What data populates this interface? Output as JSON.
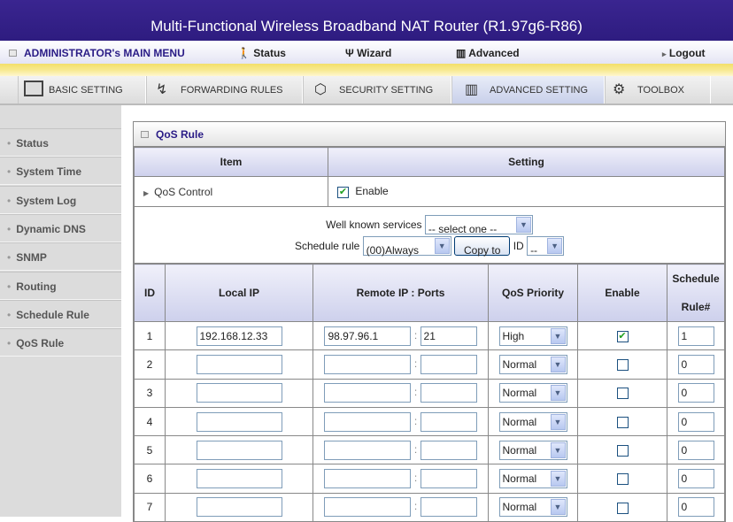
{
  "header": {
    "title": "Multi-Functional Wireless Broadband NAT Router (R1.97g6-R86)"
  },
  "menu": {
    "main": "ADMINISTRATOR's MAIN MENU",
    "status": "Status",
    "wizard": "Wizard",
    "advanced": "Advanced",
    "logout": "Logout"
  },
  "tabs": [
    {
      "label": "BASIC SETTING",
      "icon": "folder-icon"
    },
    {
      "label": "FORWARDING RULES",
      "icon": "arrows-icon"
    },
    {
      "label": "SECURITY SETTING",
      "icon": "nut-icon"
    },
    {
      "label": "ADVANCED SETTING",
      "icon": "advanced-icon",
      "active": true
    },
    {
      "label": "TOOLBOX",
      "icon": "toolbox-icon"
    }
  ],
  "sidebar": {
    "items": [
      "Status",
      "System Time",
      "System Log",
      "Dynamic DNS",
      "SNMP",
      "Routing",
      "Schedule Rule",
      "QoS Rule"
    ]
  },
  "panel": {
    "title": "QoS Rule",
    "col_item": "Item",
    "col_setting": "Setting",
    "qos_control": "QoS Control",
    "enable_label": "Enable",
    "qos_enabled": true,
    "services_label": "Well known services",
    "services_value": "-- select one --",
    "schedule_label": "Schedule rule",
    "schedule_value": "(00)Always",
    "copy_to": "Copy to",
    "id_label": "ID",
    "id_value": "--"
  },
  "table": {
    "headers": {
      "id": "ID",
      "local": "Local IP",
      "remote": "Remote IP : Ports",
      "priority": "QoS Priority",
      "enable": "Enable",
      "sched1": "Schedule",
      "sched2": "Rule#"
    },
    "rows": [
      {
        "id": "1",
        "local": "192.168.12.33",
        "remote": "98.97.96.1",
        "port": "21",
        "priority": "High",
        "enabled": true,
        "rule": "1"
      },
      {
        "id": "2",
        "local": "",
        "remote": "",
        "port": "",
        "priority": "Normal",
        "enabled": false,
        "rule": "0"
      },
      {
        "id": "3",
        "local": "",
        "remote": "",
        "port": "",
        "priority": "Normal",
        "enabled": false,
        "rule": "0"
      },
      {
        "id": "4",
        "local": "",
        "remote": "",
        "port": "",
        "priority": "Normal",
        "enabled": false,
        "rule": "0"
      },
      {
        "id": "5",
        "local": "",
        "remote": "",
        "port": "",
        "priority": "Normal",
        "enabled": false,
        "rule": "0"
      },
      {
        "id": "6",
        "local": "",
        "remote": "",
        "port": "",
        "priority": "Normal",
        "enabled": false,
        "rule": "0"
      },
      {
        "id": "7",
        "local": "",
        "remote": "",
        "port": "",
        "priority": "Normal",
        "enabled": false,
        "rule": "0"
      }
    ]
  }
}
